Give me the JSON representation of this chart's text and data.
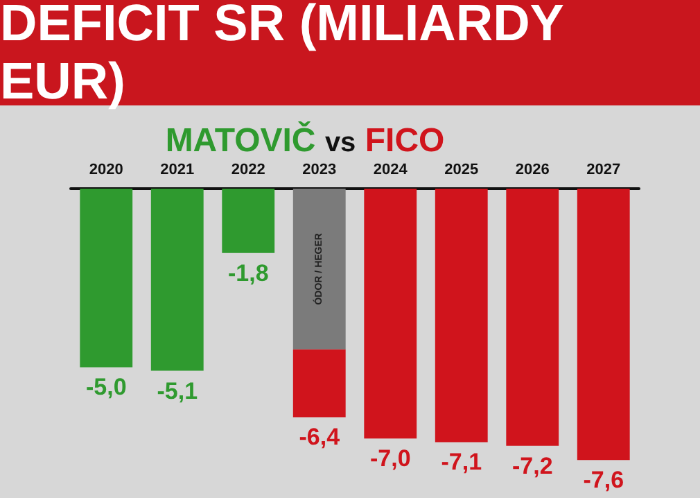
{
  "chart_data": {
    "type": "bar",
    "title": "DEFICIT SR (MILIARDY EUR)",
    "annotations": [
      "vs"
    ],
    "categories": [
      "2020",
      "2021",
      "2022",
      "2023",
      "2024",
      "2025",
      "2026",
      "2027"
    ],
    "stacked": true,
    "legend": false,
    "grid": false,
    "series": [
      {
        "name": "MATOVIČ",
        "color": "#2f9a2f",
        "values": [
          -5.0,
          -5.1,
          -1.8,
          null,
          null,
          null,
          null,
          null
        ],
        "value_labels": [
          "-5,0",
          "-5,1",
          "-1,8",
          null,
          null,
          null,
          null,
          null
        ]
      },
      {
        "name": "ÓDOR / HEGER",
        "color": "#7b7b7b",
        "values": [
          null,
          null,
          null,
          -4.5,
          null,
          null,
          null,
          null
        ]
      },
      {
        "name": "FICO",
        "color": "#d0141c",
        "values": [
          null,
          null,
          null,
          -1.9,
          -7.0,
          -7.1,
          -7.2,
          -7.6
        ],
        "value_labels": [
          null,
          null,
          null,
          null,
          "-7,0",
          "-7,1",
          "-7,2",
          "-7,6"
        ]
      }
    ],
    "totals": [
      null,
      null,
      null,
      "-6,4",
      null,
      null,
      null,
      null
    ]
  }
}
